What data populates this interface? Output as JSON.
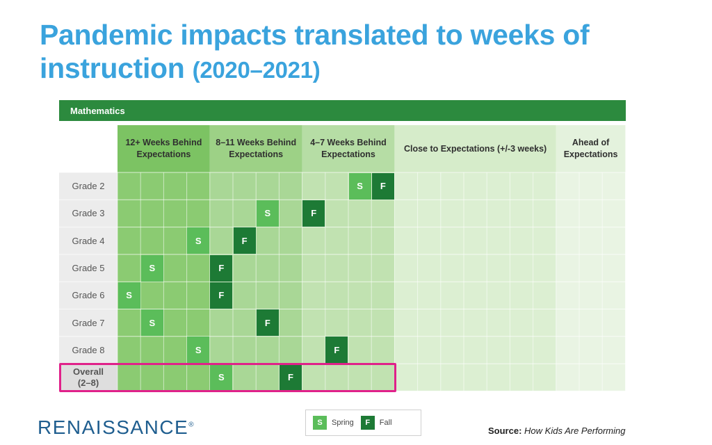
{
  "title": {
    "line1": "Pandemic impacts translated to weeks of",
    "line2": "instruction",
    "range": "(2020–2021)"
  },
  "subject": "Mathematics",
  "columns": [
    {
      "label": "12+ Weeks Behind Expectations",
      "weeks": 4
    },
    {
      "label": "8–11 Weeks Behind Expectations",
      "weeks": 4
    },
    {
      "label": "4–7 Weeks Behind Expectations",
      "weeks": 4
    },
    {
      "label": "Close to Expectations (+/-3 weeks)",
      "weeks": 7
    },
    {
      "label": "Ahead of Expectations",
      "weeks": 3
    }
  ],
  "rows": [
    {
      "label": "Grade 2",
      "spring": 11,
      "fall": 12
    },
    {
      "label": "Grade 3",
      "spring": 7,
      "fall": 9
    },
    {
      "label": "Grade 4",
      "spring": 4,
      "fall": 6
    },
    {
      "label": "Grade 5",
      "spring": 2,
      "fall": 5
    },
    {
      "label": "Grade 6",
      "spring": 1,
      "fall": 5
    },
    {
      "label": "Grade 7",
      "spring": 2,
      "fall": 7
    },
    {
      "label": "Grade 8",
      "spring": 4,
      "fall": 10
    },
    {
      "label": "Overall (2–8)",
      "spring": 5,
      "fall": 8,
      "highlighted": true
    }
  ],
  "marker_letters": {
    "spring": "S",
    "fall": "F"
  },
  "legend": {
    "spring": "Spring",
    "fall": "Fall"
  },
  "source": {
    "label": "Source:",
    "text": "How Kids Are Performing"
  },
  "logo": {
    "text": "RENAISSANCE",
    "mark": "®"
  },
  "colors": {
    "title": "#3aa3dd",
    "banner": "#2c8a3e",
    "spring": "#5bbd5a",
    "fall": "#1d7a35",
    "highlight": "#e0218a"
  }
}
